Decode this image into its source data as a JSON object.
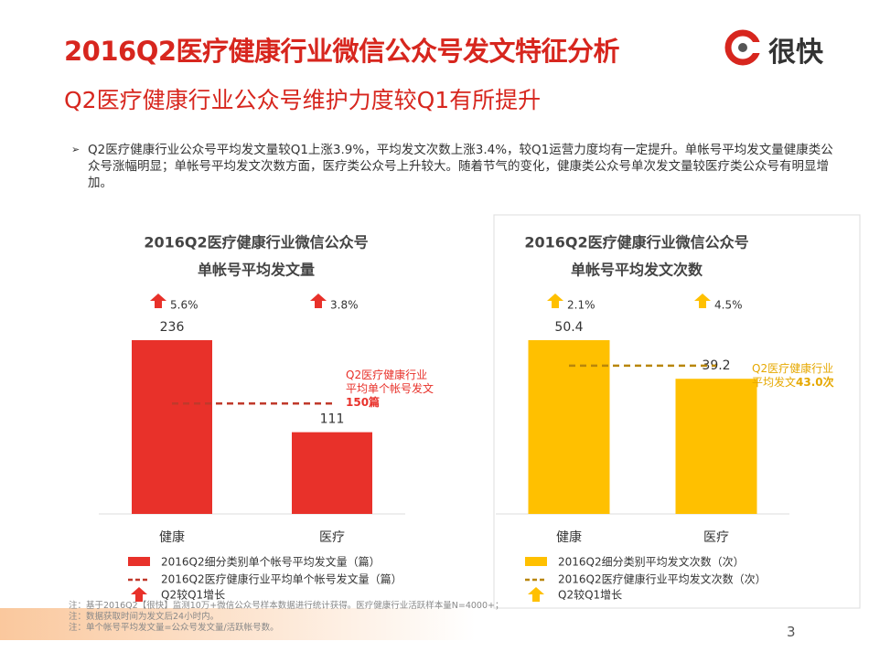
{
  "header": {
    "title": "2016Q2医疗健康行业微信公众号发文特征分析",
    "subtitle": "Q2医疗健康行业公众号维护力度较Q1有所提升",
    "logo": "很快"
  },
  "bullet": "Q2医疗健康行业公众号平均发文量较Q1上涨3.9%，平均发文次数上涨3.4%，较Q1运营力度均有一定提升。单帐号平均发文量健康类公众号涨幅明显；单帐号平均发文次数方面，医疗类公众号上升较大。随着节气的变化，健康类公众号单次发文量较医疗类公众号有明显增加。",
  "chart_data": [
    {
      "type": "bar",
      "title_lines": [
        "2016Q2医疗健康行业微信公众号",
        "单帐号平均发文量"
      ],
      "categories": [
        "健康",
        "医疗"
      ],
      "series": [
        {
          "name": "2016Q2细分类别单个帐号平均发文量（篇）",
          "color": "#e8312a",
          "values": [
            236,
            111
          ]
        }
      ],
      "growth_labels": [
        "5.6%",
        "3.8%"
      ],
      "growth_legend": "Q2较Q1增长",
      "reference": {
        "name": "2016Q2医疗健康行业平均单个帐号发文量（篇）",
        "value": 150,
        "color": "#c0392b",
        "annotation": "Q2医疗健康行业平均单个帐号发文",
        "annotation_value": "150篇"
      }
    },
    {
      "type": "bar",
      "title_lines": [
        "2016Q2医疗健康行业微信公众号",
        "单帐号平均发文次数"
      ],
      "categories": [
        "健康",
        "医疗"
      ],
      "series": [
        {
          "name": "2016Q2细分类别平均发文次数（次）",
          "color": "#ffc000",
          "values": [
            50.4,
            39.2
          ]
        }
      ],
      "growth_labels": [
        "2.1%",
        "4.5%"
      ],
      "growth_legend": "Q2较Q1增长",
      "reference": {
        "name": "2016Q2医疗健康行业平均发文次数（次）",
        "value": 43.0,
        "color": "#b8860b",
        "annotation": "Q2医疗健康行业平均发文",
        "annotation_value": "43.0次"
      }
    }
  ],
  "footnotes": [
    "注：基于2016Q2【很快】监测10万+微信公众号样本数据进行统计获得。医疗健康行业活跃样本量N=4000+；",
    "注：数据获取时间为发文后24小时内。",
    "注：单个帐号平均发文量=公众号发文量/活跃帐号数。"
  ],
  "page_number": "3"
}
